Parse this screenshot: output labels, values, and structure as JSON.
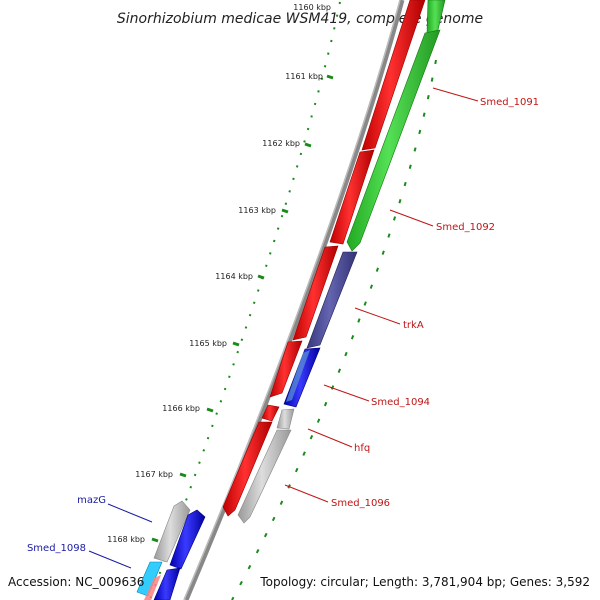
{
  "title": "Sinorhizobium medicae WSM419, complete genome",
  "ticks": [
    "1160 kbp",
    "1161 kbp",
    "1162 kbp",
    "1163 kbp",
    "1164 kbp",
    "1165 kbp",
    "1166 kbp",
    "1167 kbp",
    "1168 kbp"
  ],
  "genes": {
    "smed_1091": "Smed_1091",
    "smed_1092": "Smed_1092",
    "trka": "trkA",
    "smed_1094": "Smed_1094",
    "hfq": "hfq",
    "smed_1096": "Smed_1096",
    "mazg": "mazG",
    "smed_1098": "Smed_1098"
  },
  "footer": {
    "accession": "Accession: NC_009636",
    "topology": "Topology: circular; Length: 3,781,904 bp; Genes: 3,592"
  },
  "colors": {
    "forward_cds": "#ff0000",
    "reverse_cds": "#33cc33",
    "purple_cds": "#4d4d99",
    "blue_cds": "#0000ff",
    "grey_cds": "#bbbbbb",
    "cyan_cds": "#33ccff",
    "tick_green": "#1a8a1a",
    "backbone": "#888888"
  }
}
